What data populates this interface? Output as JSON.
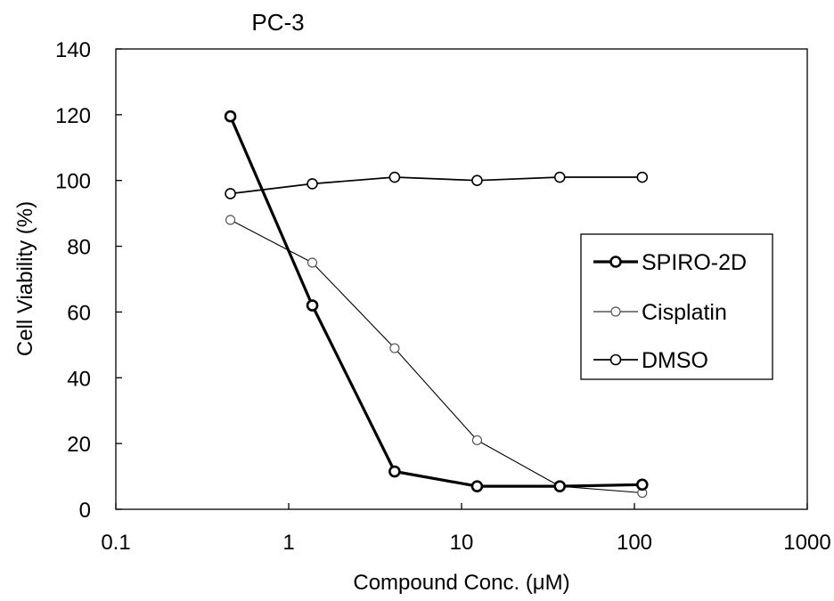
{
  "chart_data": {
    "type": "line",
    "title": "PC-3",
    "xlabel": "Compound Conc. (μM)",
    "ylabel": "Cell Viability (%)",
    "x_scale": "log",
    "xlim": [
      0.1,
      1000
    ],
    "ylim": [
      0,
      140
    ],
    "x_ticks": [
      0.1,
      1,
      10,
      100,
      1000
    ],
    "x_tick_labels": [
      "0.1",
      "1",
      "10",
      "100",
      "1000"
    ],
    "y_ticks": [
      0,
      20,
      40,
      60,
      80,
      100,
      120,
      140
    ],
    "y_tick_labels": [
      "0",
      "20",
      "40",
      "60",
      "80",
      "100",
      "120",
      "140"
    ],
    "grid": false,
    "legend_position": "right",
    "x": [
      0.46,
      1.37,
      4.1,
      12.3,
      37,
      111
    ],
    "series": [
      {
        "name": "SPIRO-2D",
        "style": "bold",
        "values": [
          119.5,
          62,
          11.5,
          7,
          7,
          7.5
        ],
        "x": [
          0.46,
          1.37,
          4.1,
          12.3,
          37,
          111
        ]
      },
      {
        "name": "Cisplatin",
        "style": "thin",
        "values": [
          88,
          75,
          49,
          21,
          7,
          5
        ],
        "x": [
          0.46,
          1.37,
          4.1,
          12.3,
          37,
          111
        ]
      },
      {
        "name": "DMSO",
        "style": "medium",
        "values": [
          96,
          99,
          101,
          100,
          101,
          101
        ],
        "x": [
          0.46,
          1.37,
          4.1,
          12.3,
          37,
          111
        ]
      }
    ],
    "colors": {
      "line": "#000000",
      "marker_fill": "#ffffff",
      "gray_marker": "#555555"
    }
  }
}
